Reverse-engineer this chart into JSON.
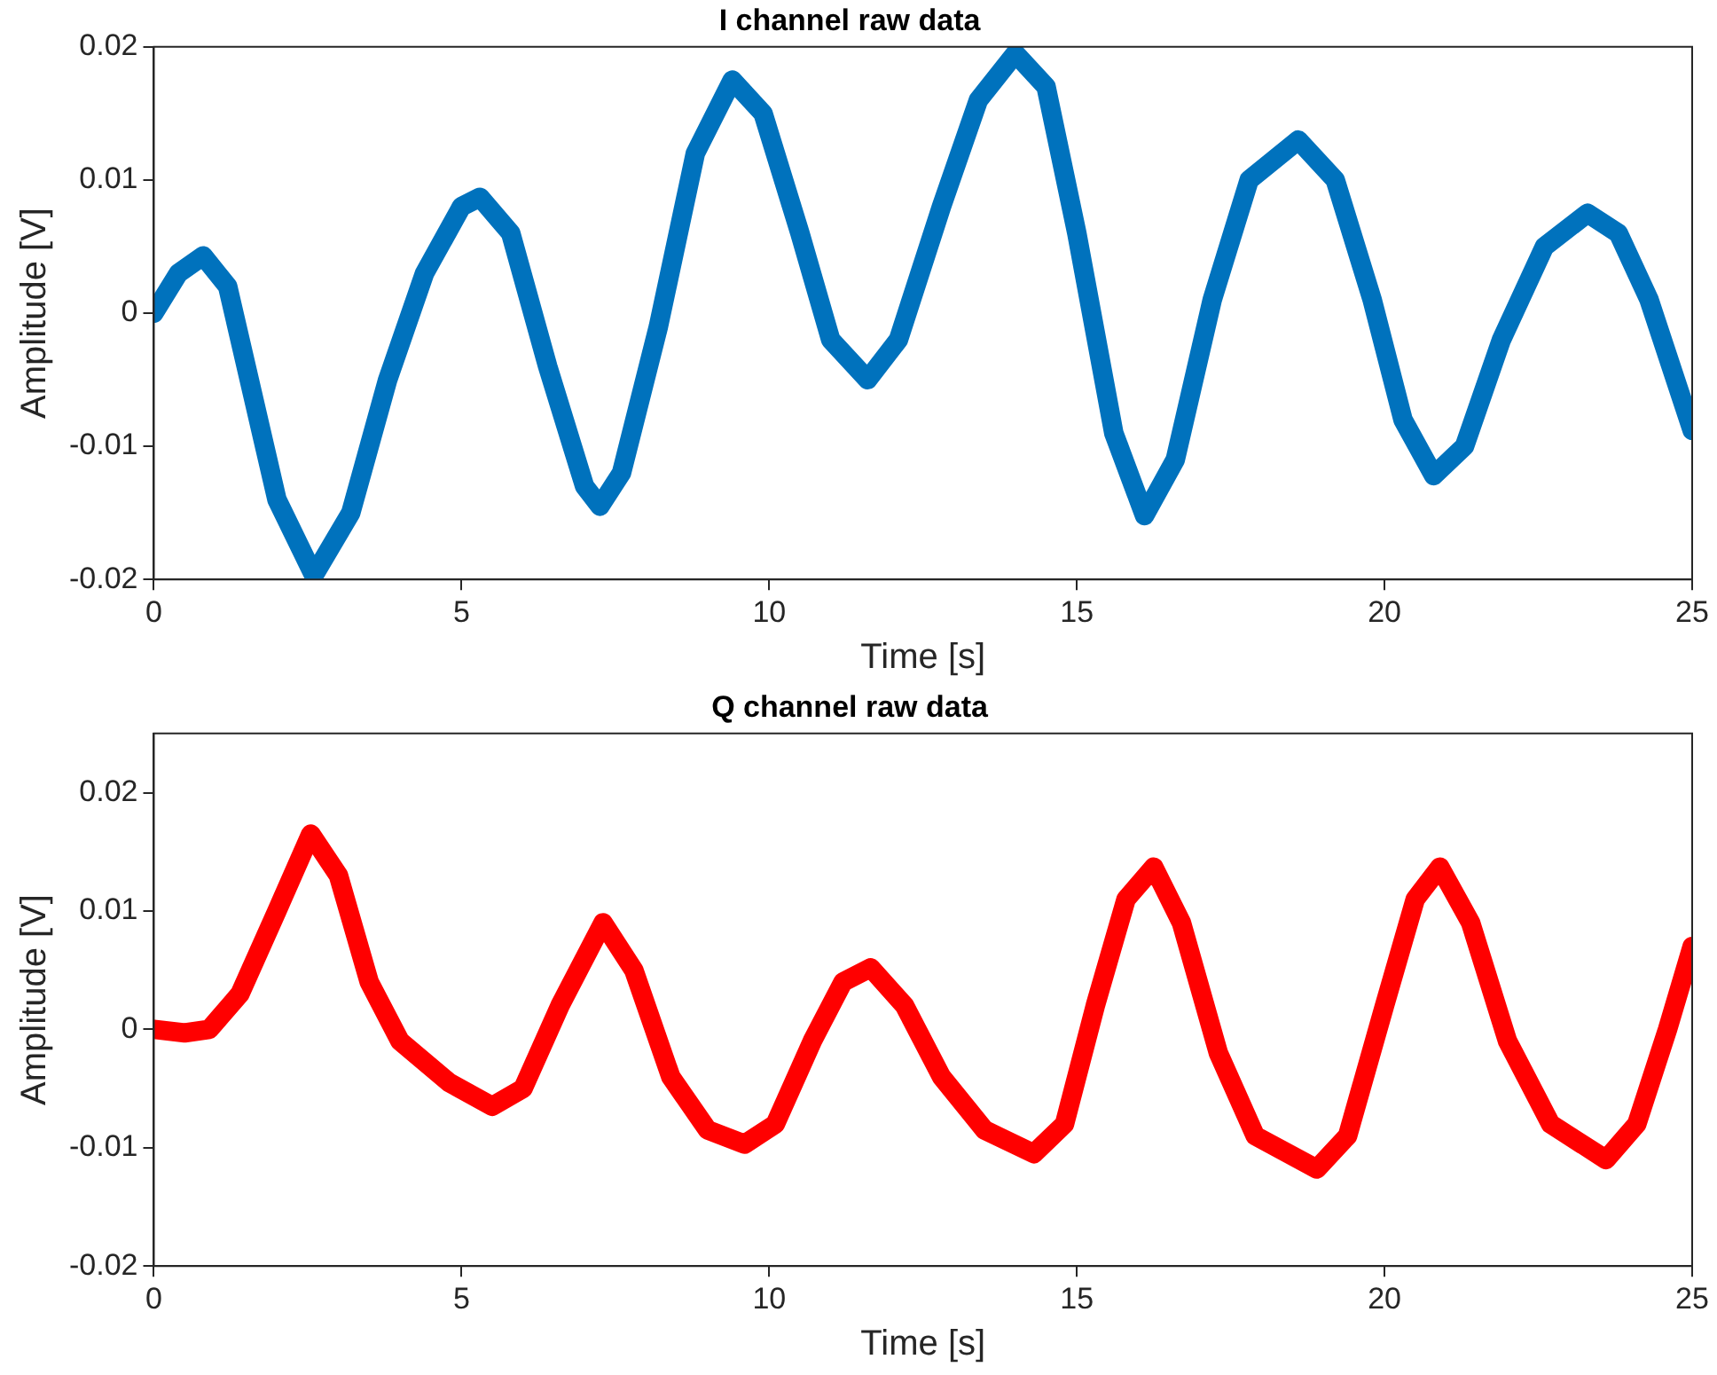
{
  "chart_data": [
    {
      "type": "line",
      "title": "I channel raw data",
      "xlabel": "Time [s]",
      "ylabel": "Amplitude [V]",
      "xlim": [
        0,
        25
      ],
      "xticks": [
        0,
        5,
        10,
        15,
        20,
        25
      ],
      "ylim": [
        -0.02,
        0.02
      ],
      "yticks": [
        -0.02,
        -0.01,
        0,
        0.01,
        0.02
      ],
      "grid": false,
      "legend": false,
      "marker": "none",
      "line_style": "solid",
      "x": [
        0,
        0.4,
        0.8,
        1.2,
        1.6,
        2.0,
        2.6,
        3.2,
        3.8,
        4.4,
        5.0,
        5.3,
        5.8,
        6.4,
        7.0,
        7.25,
        7.6,
        8.2,
        8.8,
        9.4,
        9.9,
        10.5,
        11.0,
        11.6,
        12.1,
        12.8,
        13.4,
        14.0,
        14.5,
        15.0,
        15.6,
        16.1,
        16.6,
        17.2,
        17.8,
        18.6,
        19.2,
        19.8,
        20.3,
        20.8,
        21.3,
        21.9,
        22.6,
        23.3,
        23.8,
        24.3,
        25
      ],
      "series": [
        {
          "color": "#0072bd",
          "values": [
            0,
            0.003,
            0.0043,
            0.002,
            -0.006,
            -0.014,
            -0.0197,
            -0.015,
            -0.005,
            0.003,
            0.008,
            0.0087,
            0.006,
            -0.004,
            -0.013,
            -0.0145,
            -0.012,
            -0.001,
            0.012,
            0.0175,
            0.015,
            0.006,
            -0.002,
            -0.005,
            -0.002,
            0.008,
            0.016,
            0.0195,
            0.017,
            0.006,
            -0.009,
            -0.0152,
            -0.011,
            0.001,
            0.01,
            0.013,
            0.01,
            0.001,
            -0.008,
            -0.0122,
            -0.01,
            -0.002,
            0.005,
            0.0075,
            0.006,
            0.001,
            -0.0088
          ]
        }
      ]
    },
    {
      "type": "line",
      "title": "Q channel raw data",
      "xlabel": "Time [s]",
      "ylabel": "Amplitude [V]",
      "xlim": [
        0,
        25
      ],
      "xticks": [
        0,
        5,
        10,
        15,
        20,
        25
      ],
      "ylim": [
        -0.02,
        0.025
      ],
      "yticks": [
        -0.02,
        -0.01,
        0,
        0.01,
        0.02
      ],
      "grid": false,
      "legend": false,
      "marker": "none",
      "line_style": "solid",
      "x": [
        0,
        0.5,
        0.9,
        1.4,
        2.0,
        2.55,
        3.0,
        3.5,
        4.0,
        4.8,
        5.5,
        6.0,
        6.6,
        7.3,
        7.8,
        8.4,
        9.0,
        9.6,
        10.1,
        10.7,
        11.2,
        11.65,
        12.2,
        12.8,
        13.5,
        14.3,
        14.8,
        15.3,
        15.8,
        16.25,
        16.7,
        17.3,
        17.9,
        18.9,
        19.4,
        20.0,
        20.5,
        20.9,
        21.4,
        22.0,
        22.7,
        23.6,
        24.1,
        24.6,
        25
      ],
      "series": [
        {
          "color": "#ff0000",
          "values": [
            0,
            -0.0003,
            0,
            0.003,
            0.01,
            0.0165,
            0.013,
            0.004,
            -0.001,
            -0.0045,
            -0.0065,
            -0.005,
            0.002,
            0.009,
            0.005,
            -0.004,
            -0.0085,
            -0.0097,
            -0.008,
            -0.001,
            0.004,
            0.0052,
            0.002,
            -0.004,
            -0.0085,
            -0.0105,
            -0.008,
            0.002,
            0.011,
            0.0137,
            0.009,
            -0.002,
            -0.009,
            -0.0118,
            -0.009,
            0.002,
            0.011,
            0.0137,
            0.009,
            -0.001,
            -0.008,
            -0.011,
            -0.008,
            0,
            0.007
          ]
        }
      ]
    }
  ]
}
